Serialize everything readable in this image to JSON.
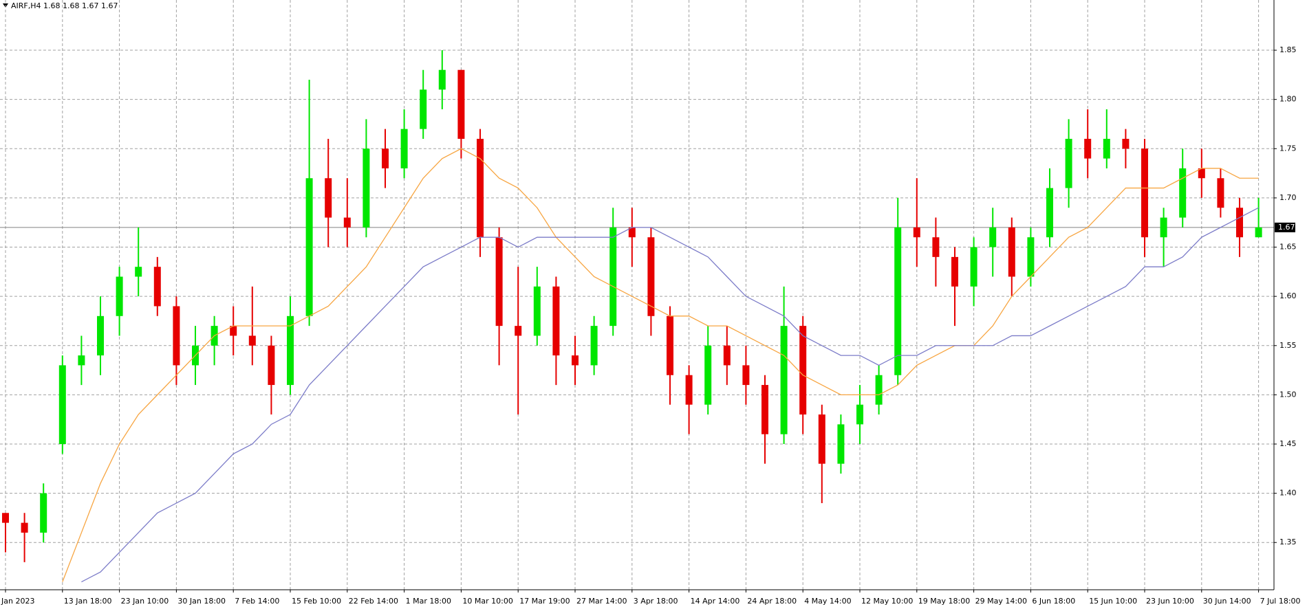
{
  "chart_data": {
    "type": "candlestick",
    "title": "AIRF,H4  1.68 1.68 1.67 1.67",
    "categories": [
      "Jan 2023",
      null,
      null,
      "13 Jan 18:00",
      null,
      null,
      "23 Jan 10:00",
      null,
      null,
      "30 Jan 18:00",
      null,
      null,
      "7 Feb 14:00",
      null,
      null,
      "15 Feb 10:00",
      null,
      null,
      "22 Feb 14:00",
      null,
      null,
      "1 Mar 18:00",
      null,
      null,
      "10 Mar 10:00",
      null,
      null,
      "17 Mar 19:00",
      null,
      null,
      "27 Mar 14:00",
      null,
      null,
      "3 Apr 18:00",
      null,
      null,
      "14 Apr 14:00",
      null,
      null,
      "24 Apr 18:00",
      null,
      null,
      "4 May 14:00",
      null,
      null,
      "12 May 10:00",
      null,
      null,
      "19 May 18:00",
      null,
      null,
      "29 May 14:00",
      null,
      null,
      "6 Jun 18:00",
      null,
      null,
      "15 Jun 10:00",
      null,
      null,
      "23 Jun 10:00",
      null,
      null,
      "30 Jun 14:00",
      null,
      null,
      "7 Jul 18:00"
    ],
    "open": [
      1.38,
      1.37,
      1.36,
      1.45,
      1.53,
      1.54,
      1.58,
      1.62,
      1.63,
      1.59,
      1.53,
      1.55,
      1.57,
      1.56,
      1.55,
      1.51,
      1.58,
      1.72,
      1.68,
      1.67,
      1.75,
      1.73,
      1.77,
      1.81,
      1.83,
      1.76,
      1.66,
      1.57,
      1.56,
      1.61,
      1.54,
      1.53,
      1.57,
      1.67,
      1.66,
      1.58,
      1.52,
      1.49,
      1.55,
      1.53,
      1.51,
      1.46,
      1.57,
      1.48,
      1.43,
      1.47,
      1.49,
      1.52,
      1.67,
      1.66,
      1.64,
      1.61,
      1.65,
      1.67,
      1.62,
      1.66,
      1.71,
      1.76,
      1.74,
      1.76,
      1.75,
      1.66,
      1.68,
      1.73,
      1.72,
      1.69,
      1.66
    ],
    "high": [
      1.38,
      1.38,
      1.41,
      1.54,
      1.56,
      1.6,
      1.63,
      1.67,
      1.64,
      1.6,
      1.57,
      1.58,
      1.59,
      1.61,
      1.56,
      1.6,
      1.82,
      1.76,
      1.72,
      1.78,
      1.77,
      1.79,
      1.83,
      1.85,
      1.83,
      1.77,
      1.67,
      1.63,
      1.63,
      1.62,
      1.56,
      1.58,
      1.69,
      1.69,
      1.67,
      1.59,
      1.53,
      1.57,
      1.57,
      1.55,
      1.52,
      1.61,
      1.58,
      1.49,
      1.48,
      1.51,
      1.53,
      1.7,
      1.72,
      1.68,
      1.65,
      1.66,
      1.69,
      1.68,
      1.67,
      1.73,
      1.78,
      1.79,
      1.79,
      1.77,
      1.76,
      1.69,
      1.75,
      1.75,
      1.73,
      1.7,
      1.7
    ],
    "low": [
      1.34,
      1.33,
      1.35,
      1.44,
      1.51,
      1.52,
      1.56,
      1.6,
      1.58,
      1.51,
      1.51,
      1.53,
      1.54,
      1.53,
      1.48,
      1.5,
      1.57,
      1.65,
      1.65,
      1.66,
      1.71,
      1.72,
      1.76,
      1.79,
      1.74,
      1.64,
      1.53,
      1.48,
      1.55,
      1.51,
      1.51,
      1.52,
      1.56,
      1.63,
      1.56,
      1.49,
      1.46,
      1.48,
      1.51,
      1.49,
      1.43,
      1.45,
      1.46,
      1.39,
      1.42,
      1.45,
      1.48,
      1.51,
      1.63,
      1.61,
      1.57,
      1.59,
      1.62,
      1.6,
      1.61,
      1.65,
      1.69,
      1.72,
      1.73,
      1.73,
      1.64,
      1.63,
      1.67,
      1.7,
      1.68,
      1.64,
      1.66
    ],
    "close": [
      1.37,
      1.36,
      1.4,
      1.53,
      1.54,
      1.58,
      1.62,
      1.63,
      1.59,
      1.53,
      1.55,
      1.57,
      1.56,
      1.55,
      1.51,
      1.58,
      1.72,
      1.68,
      1.67,
      1.75,
      1.73,
      1.77,
      1.81,
      1.83,
      1.76,
      1.66,
      1.57,
      1.56,
      1.61,
      1.54,
      1.53,
      1.57,
      1.67,
      1.66,
      1.58,
      1.52,
      1.49,
      1.55,
      1.53,
      1.51,
      1.46,
      1.57,
      1.48,
      1.43,
      1.47,
      1.49,
      1.52,
      1.67,
      1.66,
      1.64,
      1.61,
      1.65,
      1.67,
      1.62,
      1.66,
      1.71,
      1.76,
      1.74,
      1.76,
      1.75,
      1.66,
      1.68,
      1.73,
      1.72,
      1.69,
      1.66,
      1.67
    ],
    "up_color": "#00e600",
    "down_color": "#e60000",
    "series": [
      {
        "color": "#f7a541",
        "values": [
          null,
          null,
          null,
          1.31,
          1.36,
          1.41,
          1.45,
          1.48,
          1.5,
          1.52,
          1.54,
          1.56,
          1.57,
          1.57,
          1.57,
          1.57,
          1.58,
          1.59,
          1.61,
          1.63,
          1.66,
          1.69,
          1.72,
          1.74,
          1.75,
          1.74,
          1.72,
          1.71,
          1.69,
          1.66,
          1.64,
          1.62,
          1.61,
          1.6,
          1.59,
          1.58,
          1.58,
          1.57,
          1.57,
          1.56,
          1.55,
          1.54,
          1.52,
          1.51,
          1.5,
          1.5,
          1.5,
          1.51,
          1.53,
          1.54,
          1.55,
          1.55,
          1.57,
          1.6,
          1.62,
          1.64,
          1.66,
          1.67,
          1.69,
          1.71,
          1.71,
          1.71,
          1.72,
          1.73,
          1.73,
          1.72,
          1.72
        ]
      },
      {
        "color": "#7b7bc8",
        "values": [
          null,
          null,
          null,
          null,
          1.31,
          1.32,
          1.34,
          1.36,
          1.38,
          1.39,
          1.4,
          1.42,
          1.44,
          1.45,
          1.47,
          1.48,
          1.51,
          1.53,
          1.55,
          1.57,
          1.59,
          1.61,
          1.63,
          1.64,
          1.65,
          1.66,
          1.66,
          1.65,
          1.66,
          1.66,
          1.66,
          1.66,
          1.66,
          1.67,
          1.67,
          1.66,
          1.65,
          1.64,
          1.62,
          1.6,
          1.59,
          1.58,
          1.56,
          1.55,
          1.54,
          1.54,
          1.53,
          1.54,
          1.54,
          1.55,
          1.55,
          1.55,
          1.55,
          1.56,
          1.56,
          1.57,
          1.58,
          1.59,
          1.6,
          1.61,
          1.63,
          1.63,
          1.64,
          1.66,
          1.67,
          1.68,
          1.69
        ]
      }
    ],
    "last_price": 1.67,
    "ylim": [
      1.302,
      1.901
    ],
    "yticks": [
      1.35,
      {
        "value": 1.4,
        "label": "1.40"
      },
      1.45,
      {
        "value": 1.5,
        "label": "1.50"
      },
      1.55,
      {
        "value": 1.6,
        "label": "1.60"
      },
      1.65,
      {
        "value": 1.7,
        "label": "1.70"
      },
      1.75,
      {
        "value": 1.8,
        "label": "1.80"
      },
      1.85
    ],
    "grid": true
  }
}
